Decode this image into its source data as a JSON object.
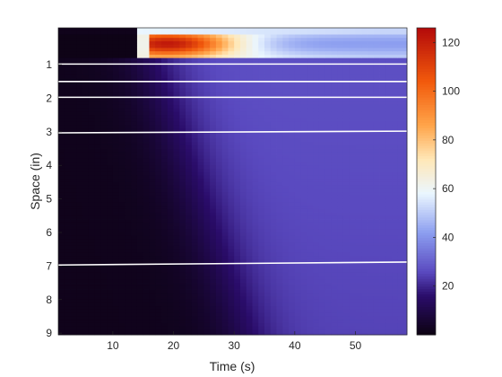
{
  "chart_data": {
    "type": "heatmap",
    "xlabel": "Time (s)",
    "ylabel": "Space (in)",
    "x_ticks": [
      10,
      20,
      30,
      40,
      50
    ],
    "y_ticks": [
      1,
      2,
      3,
      4,
      5,
      6,
      7,
      8,
      9
    ],
    "xlim": [
      1,
      58.5
    ],
    "ylim": [
      -0.1,
      9.05
    ],
    "y_direction": "reverse",
    "colorbar": {
      "ticks": [
        20,
        40,
        60,
        80,
        100,
        120
      ],
      "limits": [
        0,
        126
      ],
      "colormap": "black-purple-blue-white-orange-red"
    },
    "colormap_stops": [
      {
        "value": 0,
        "color": "#0c0210"
      },
      {
        "value": 16,
        "color": "#2a0c6a"
      },
      {
        "value": 26,
        "color": "#5a4ac0"
      },
      {
        "value": 42,
        "color": "#8c9ef0"
      },
      {
        "value": 58,
        "color": "#eaf6ff"
      },
      {
        "value": 72,
        "color": "#ffe8b8"
      },
      {
        "value": 86,
        "color": "#ffa54a"
      },
      {
        "value": 104,
        "color": "#f25a0c"
      },
      {
        "value": 126,
        "color": "#b40a0a"
      }
    ],
    "field": {
      "surface_band": {
        "depth_range": [
          -0.1,
          0.8
        ],
        "onset_time": 14.5,
        "peak_time": 19,
        "peak_value": 122
      },
      "top_strip": {
        "depth_range": [
          -0.1,
          0.08
        ],
        "value": 58
      },
      "deep_region": {
        "value_max": 27,
        "front_time_at_surface": 15,
        "front_time_at_9in": 32
      }
    },
    "contour_lines": [
      {
        "y_start": 0.98,
        "y_end": 0.98
      },
      {
        "y_start": 1.5,
        "y_end": 1.5
      },
      {
        "y_start": 1.97,
        "y_end": 1.97
      },
      {
        "y_start": 3.03,
        "y_end": 2.98
      },
      {
        "y_start": 6.97,
        "y_end": 6.88
      }
    ],
    "contour_color": "#ffffff"
  }
}
